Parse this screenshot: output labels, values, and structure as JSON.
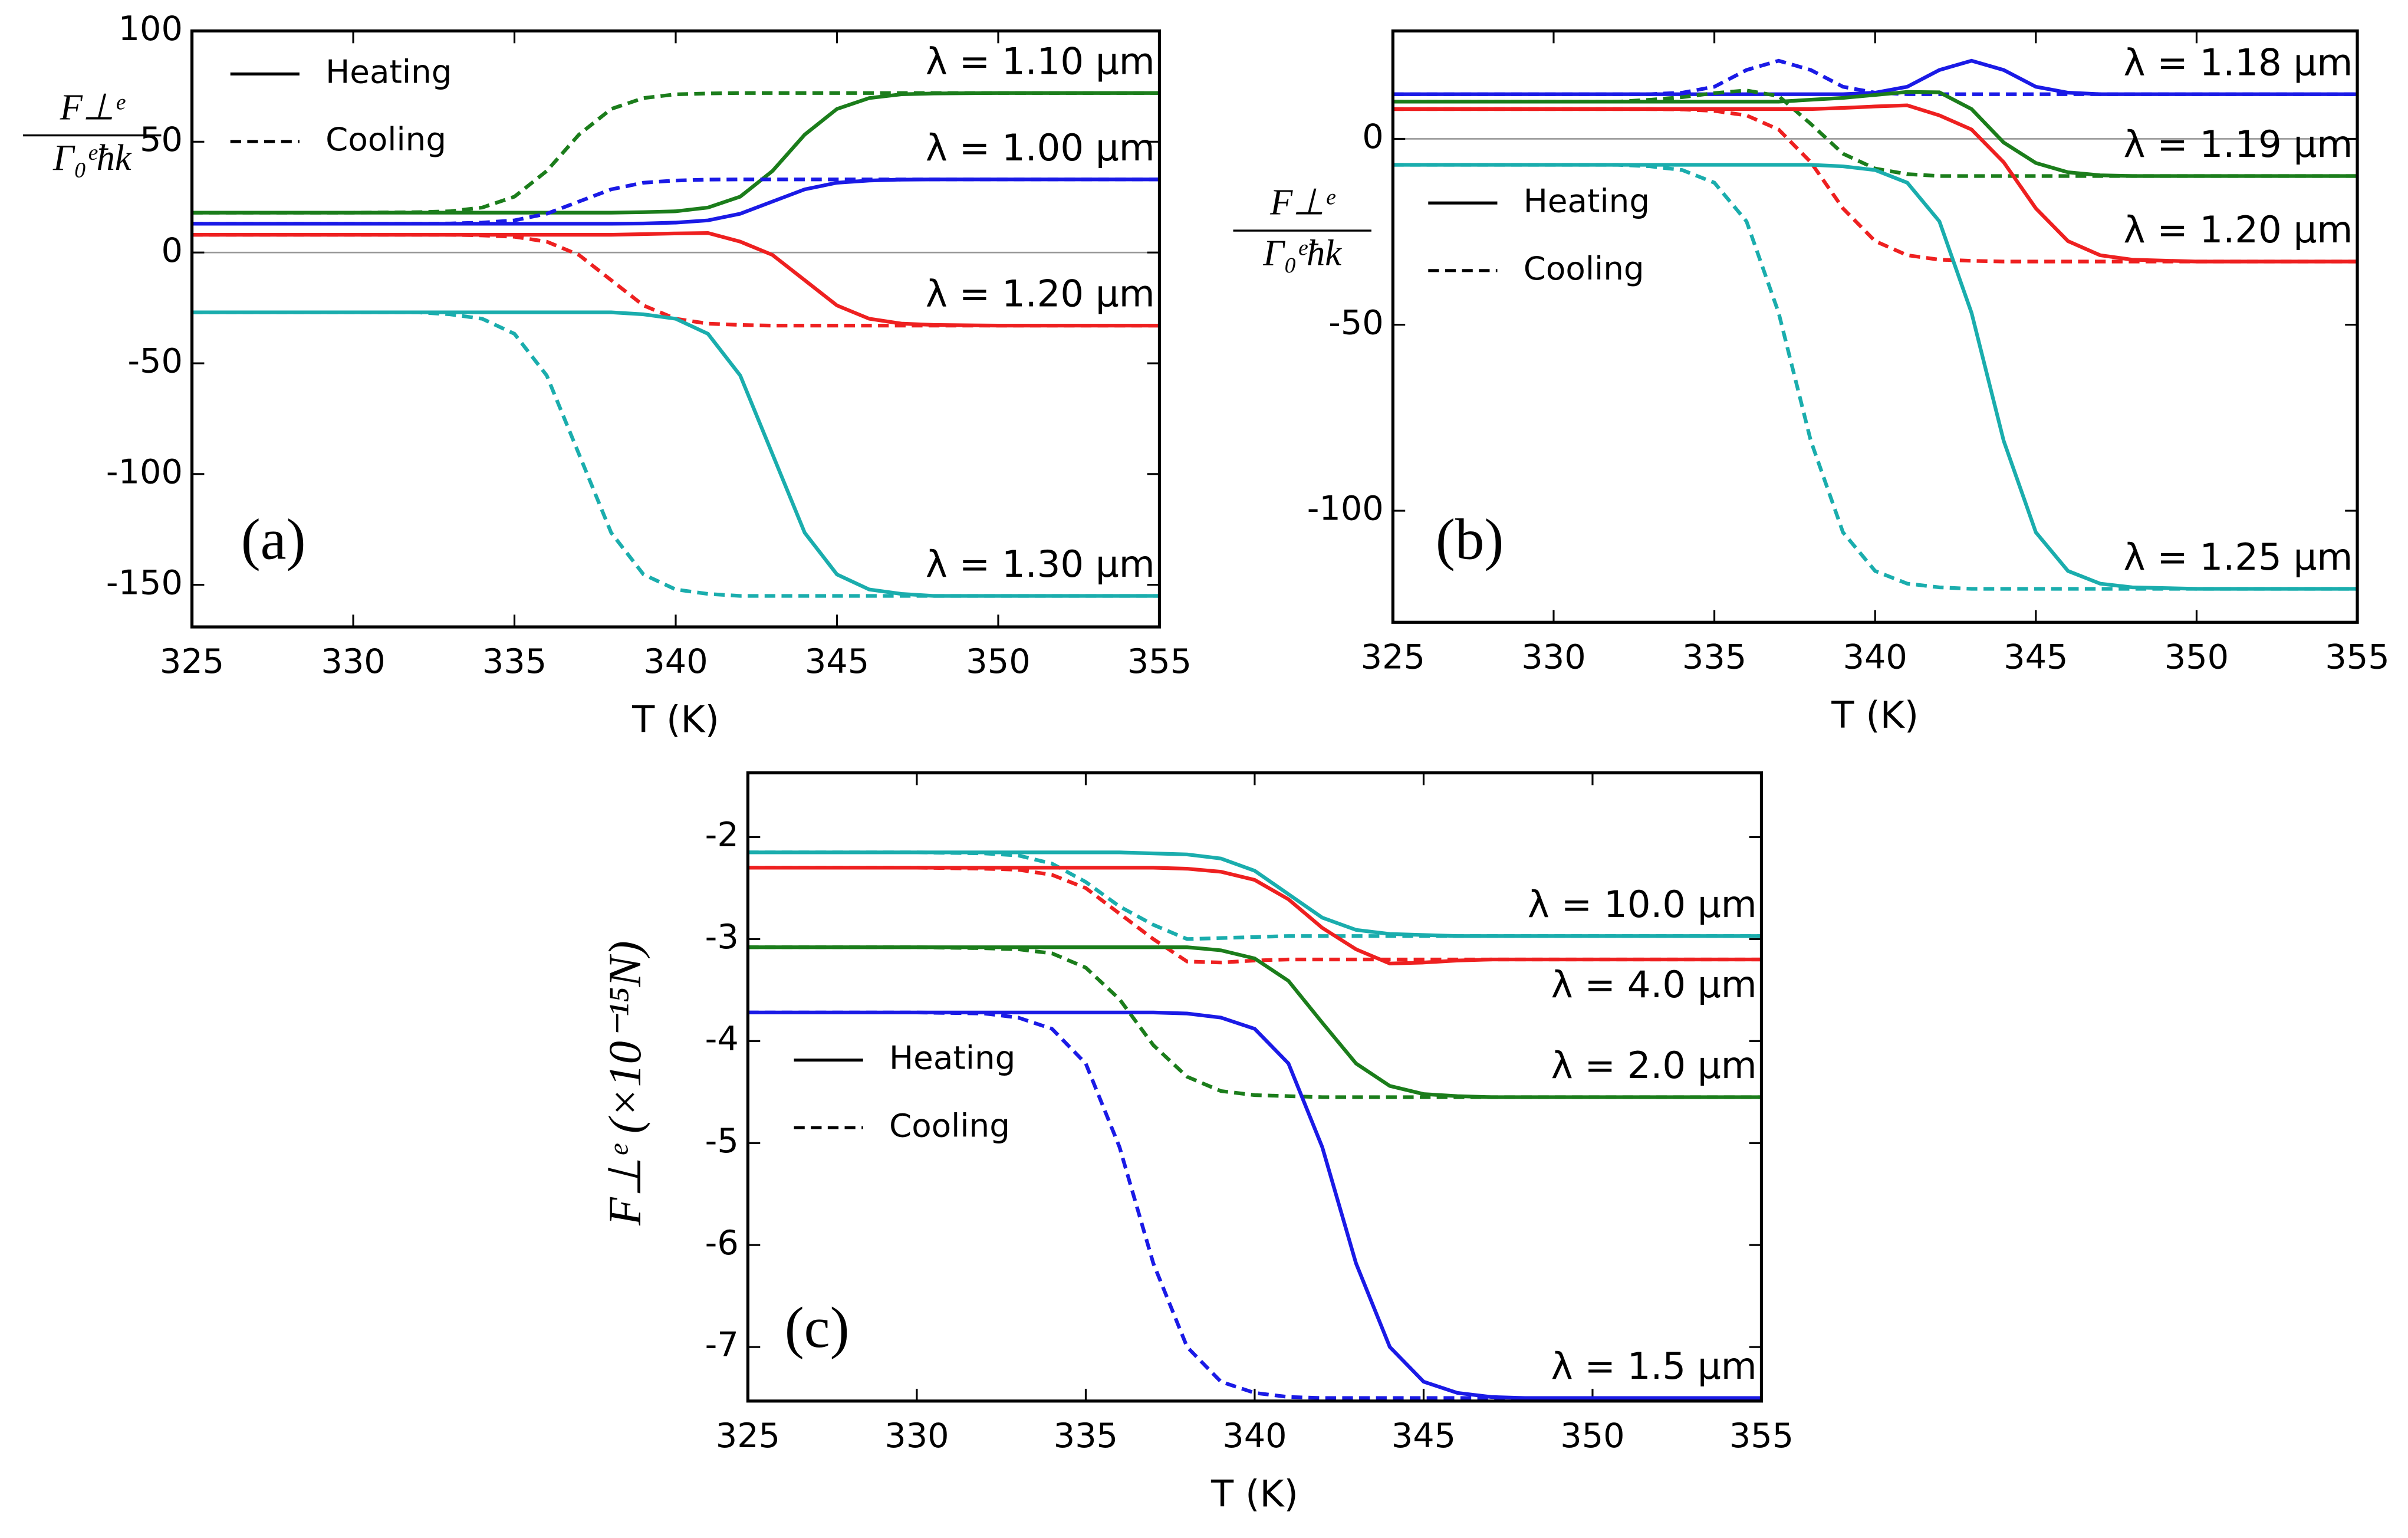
{
  "chart_data": [
    {
      "type": "line",
      "panel_label": "(a)",
      "x_label": "T (K)",
      "y_label": {
        "numerator": "F⊥ᵉ",
        "denominator": "Γ₀ᵉħk"
      },
      "legend": {
        "heating": "Heating",
        "cooling": "Cooling"
      },
      "zero_line": true,
      "x": [
        325,
        330,
        332,
        333,
        334,
        335,
        336,
        337,
        338,
        339,
        340,
        341,
        342,
        343,
        344,
        345,
        346,
        347,
        348,
        350,
        355
      ],
      "xlim": [
        325,
        355
      ],
      "xticks": [
        325,
        330,
        335,
        340,
        345,
        350,
        355
      ],
      "ylim": [
        -169,
        100
      ],
      "yticks": [
        -150,
        -100,
        -50,
        0,
        50,
        100
      ],
      "series": [
        {
          "label": "λ = 1.10 μm",
          "color": "#1b7d1b",
          "heating": [
            18,
            18,
            18,
            18,
            18,
            18,
            18,
            18,
            18,
            18.2,
            18.6,
            20.3,
            25.2,
            36.8,
            53.2,
            64.8,
            69.7,
            71.4,
            71.8,
            72,
            72
          ],
          "cooling": [
            18,
            18,
            18.2,
            18.6,
            20.3,
            25.2,
            36.8,
            53.2,
            64.8,
            69.7,
            71.4,
            71.8,
            72,
            72,
            72,
            72,
            72,
            72,
            72,
            72,
            72
          ]
        },
        {
          "label": "λ = 1.00 μm",
          "color": "#1a1ae6",
          "heating": [
            13,
            13,
            13,
            13,
            13,
            13,
            13,
            13,
            13,
            13.1,
            13.5,
            14.5,
            17.5,
            23,
            28.5,
            31.5,
            32.5,
            32.9,
            33,
            33,
            33
          ],
          "cooling": [
            13,
            13,
            13,
            13.1,
            13.5,
            14.5,
            17.5,
            23,
            28.5,
            31.5,
            32.5,
            32.9,
            33,
            33,
            33,
            33,
            33,
            33,
            33,
            33,
            33
          ]
        },
        {
          "label": "λ = 1.20 μm",
          "color": "#ee2020",
          "heating": [
            8,
            8,
            8,
            8,
            8,
            8,
            8,
            8,
            8,
            8.3,
            8.6,
            8.8,
            4.9,
            -1.1,
            -12.5,
            -23.9,
            -29.9,
            -32.1,
            -32.7,
            -33,
            -33
          ],
          "cooling": [
            8,
            8,
            8,
            8,
            7.7,
            7.1,
            4.9,
            -1.1,
            -12.5,
            -23.9,
            -29.9,
            -32.1,
            -32.7,
            -33,
            -33,
            -33,
            -33,
            -33,
            -33,
            -33,
            -33
          ]
        },
        {
          "label": "λ = 1.30 μm",
          "color": "#1aadad",
          "heating": [
            -27,
            -27,
            -27,
            -27,
            -27,
            -27,
            -27,
            -27,
            -27,
            -27.9,
            -29.9,
            -36.7,
            -55.5,
            -91,
            -126.5,
            -145.3,
            -152.1,
            -154.1,
            -155,
            -155,
            -155
          ],
          "cooling": [
            -27,
            -27,
            -27,
            -27.9,
            -29.9,
            -36.7,
            -55.5,
            -91,
            -126.5,
            -145.3,
            -152.1,
            -154.1,
            -155,
            -155,
            -155,
            -155,
            -155,
            -155,
            -155,
            -155,
            -155
          ]
        }
      ]
    },
    {
      "type": "line",
      "panel_label": "(b)",
      "x_label": "T (K)",
      "y_label": {
        "numerator": "F⊥ᵉ",
        "denominator": "Γ₀ᵉħk"
      },
      "legend": {
        "heating": "Heating",
        "cooling": "Cooling"
      },
      "zero_line": true,
      "x": [
        325,
        330,
        332,
        333,
        334,
        335,
        336,
        337,
        338,
        339,
        340,
        341,
        342,
        343,
        344,
        345,
        346,
        347,
        348,
        350,
        355
      ],
      "xlim": [
        325,
        355
      ],
      "xticks": [
        325,
        330,
        335,
        340,
        345,
        350,
        355
      ],
      "ylim": [
        -130,
        29
      ],
      "yticks": [
        -100,
        -50,
        0
      ],
      "series": [
        {
          "label": "λ = 1.18 μm",
          "color": "#1a1ae6",
          "heating": [
            12,
            12,
            12,
            12,
            12,
            12,
            12,
            12,
            12,
            12,
            12.4,
            14,
            18.5,
            21,
            18.5,
            14,
            12.4,
            12,
            12,
            12,
            12
          ],
          "cooling": [
            12,
            12,
            12,
            12,
            12.4,
            14,
            18.5,
            21,
            18.5,
            14,
            12.4,
            12,
            12,
            12,
            12,
            12,
            12,
            12,
            12,
            12,
            12
          ]
        },
        {
          "label": "λ = 1.19 μm",
          "color": "#1b7d1b",
          "heating": [
            10,
            10,
            10,
            10,
            10,
            10,
            10,
            10,
            10.5,
            11,
            11.8,
            12.6,
            12.5,
            8,
            -1,
            -6.5,
            -9,
            -9.8,
            -10,
            -10,
            -10
          ],
          "cooling": [
            10,
            10,
            10,
            10.5,
            11.2,
            12.3,
            13,
            11.5,
            4,
            -4,
            -8,
            -9.5,
            -10,
            -10,
            -10,
            -10,
            -10,
            -10,
            -10,
            -10,
            -10
          ]
        },
        {
          "label": "λ = 1.20 μm",
          "color": "#ee2020",
          "heating": [
            8,
            8,
            8,
            8,
            8,
            8,
            8,
            8,
            8,
            8.3,
            8.7,
            9,
            6.3,
            2.5,
            -6.3,
            -18.7,
            -27.5,
            -31.3,
            -32.5,
            -33,
            -33
          ],
          "cooling": [
            8,
            8,
            8,
            8,
            7.9,
            7.5,
            6.3,
            2.5,
            -6.3,
            -18.7,
            -27.5,
            -31.3,
            -32.5,
            -32.8,
            -33,
            -33,
            -33,
            -33,
            -33,
            -33,
            -33
          ]
        },
        {
          "label": "λ = 1.25 μm",
          "color": "#1aadad",
          "heating": [
            -7,
            -7,
            -7,
            -7,
            -7,
            -7,
            -7,
            -7,
            -7,
            -7.4,
            -8.4,
            -11.8,
            -22.2,
            -46.8,
            -81.2,
            -105.8,
            -116.2,
            -119.6,
            -120.6,
            -121,
            -121
          ],
          "cooling": [
            -7,
            -7,
            -7,
            -7.4,
            -8.4,
            -11.8,
            -22.2,
            -46.8,
            -81.2,
            -105.8,
            -116.2,
            -119.6,
            -120.6,
            -121,
            -121,
            -121,
            -121,
            -121,
            -121,
            -121,
            -121
          ]
        }
      ]
    },
    {
      "type": "line",
      "panel_label": "(c)",
      "x_label": "T (K)",
      "y_label": "F⊥ᵉ (×10⁻¹⁵N)",
      "legend": {
        "heating": "Heating",
        "cooling": "Cooling"
      },
      "zero_line": false,
      "x": [
        325,
        330,
        332,
        333,
        334,
        335,
        336,
        337,
        338,
        339,
        340,
        341,
        342,
        343,
        344,
        345,
        346,
        347,
        348,
        350,
        355
      ],
      "xlim": [
        325,
        355
      ],
      "xticks": [
        325,
        330,
        335,
        340,
        345,
        350,
        355
      ],
      "ylim": [
        -7.53,
        -1.37
      ],
      "yticks": [
        -7,
        -6,
        -5,
        -4,
        -3,
        -2
      ],
      "series": [
        {
          "label": "λ = 10.0 μm",
          "color": "#1aadad",
          "heating": [
            -2.15,
            -2.15,
            -2.15,
            -2.15,
            -2.15,
            -2.15,
            -2.15,
            -2.16,
            -2.17,
            -2.21,
            -2.33,
            -2.56,
            -2.79,
            -2.91,
            -2.95,
            -2.96,
            -2.97,
            -2.97,
            -2.97,
            -2.97,
            -2.97
          ],
          "cooling": [
            -2.15,
            -2.15,
            -2.16,
            -2.18,
            -2.26,
            -2.44,
            -2.68,
            -2.86,
            -3.0,
            -2.99,
            -2.98,
            -2.97,
            -2.97,
            -2.97,
            -2.97,
            -2.97,
            -2.97,
            -2.97,
            -2.97,
            -2.97,
            -2.97
          ]
        },
        {
          "label": "λ = 4.0 μm",
          "color": "#ee2020",
          "heating": [
            -2.3,
            -2.3,
            -2.3,
            -2.3,
            -2.3,
            -2.3,
            -2.3,
            -2.3,
            -2.31,
            -2.34,
            -2.42,
            -2.61,
            -2.89,
            -3.1,
            -3.24,
            -3.23,
            -3.21,
            -3.2,
            -3.2,
            -3.2,
            -3.2
          ],
          "cooling": [
            -2.3,
            -2.3,
            -2.31,
            -2.32,
            -2.37,
            -2.5,
            -2.75,
            -3.0,
            -3.22,
            -3.23,
            -3.21,
            -3.2,
            -3.2,
            -3.2,
            -3.2,
            -3.2,
            -3.2,
            -3.2,
            -3.2,
            -3.2,
            -3.2
          ]
        },
        {
          "label": "λ = 2.0 μm",
          "color": "#1b7d1b",
          "heating": [
            -3.08,
            -3.08,
            -3.08,
            -3.08,
            -3.08,
            -3.08,
            -3.08,
            -3.08,
            -3.08,
            -3.11,
            -3.19,
            -3.41,
            -3.82,
            -4.22,
            -4.44,
            -4.52,
            -4.54,
            -4.55,
            -4.55,
            -4.55,
            -4.55
          ],
          "cooling": [
            -3.08,
            -3.08,
            -3.09,
            -3.1,
            -3.14,
            -3.28,
            -3.59,
            -4.04,
            -4.35,
            -4.49,
            -4.53,
            -4.54,
            -4.55,
            -4.55,
            -4.55,
            -4.55,
            -4.55,
            -4.55,
            -4.55,
            -4.55,
            -4.55
          ]
        },
        {
          "label": "λ = 1.5 μm",
          "color": "#1a1ae6",
          "heating": [
            -3.72,
            -3.72,
            -3.72,
            -3.72,
            -3.72,
            -3.72,
            -3.72,
            -3.72,
            -3.73,
            -3.77,
            -3.88,
            -4.22,
            -5.04,
            -6.18,
            -7.0,
            -7.34,
            -7.45,
            -7.49,
            -7.5,
            -7.5,
            -7.5
          ],
          "cooling": [
            -3.72,
            -3.72,
            -3.73,
            -3.77,
            -3.88,
            -4.22,
            -5.04,
            -6.18,
            -7.0,
            -7.34,
            -7.45,
            -7.49,
            -7.5,
            -7.5,
            -7.5,
            -7.5,
            -7.5,
            -7.5,
            -7.5,
            -7.5,
            -7.5
          ]
        }
      ]
    }
  ]
}
